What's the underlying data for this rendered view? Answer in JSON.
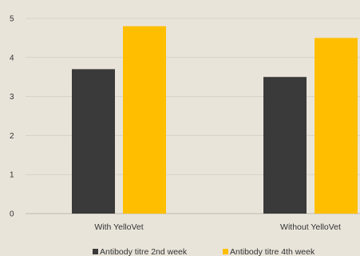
{
  "chart_data": {
    "type": "bar",
    "title": "",
    "xlabel": "",
    "ylabel": "",
    "categories": [
      "With YelloVet",
      "Without YelloVet"
    ],
    "series": [
      {
        "name": "Antibody titre 2nd week",
        "values": [
          3.7,
          3.5
        ],
        "color": "#3a3a3a"
      },
      {
        "name": "Antibody titre 4th week",
        "values": [
          4.8,
          4.5
        ],
        "color": "#ffbf00"
      }
    ],
    "ylim": [
      0,
      5
    ],
    "yticks": [
      "0",
      "1",
      "2",
      "3",
      "4",
      "5"
    ],
    "grid": true,
    "legend_position": "bottom"
  }
}
